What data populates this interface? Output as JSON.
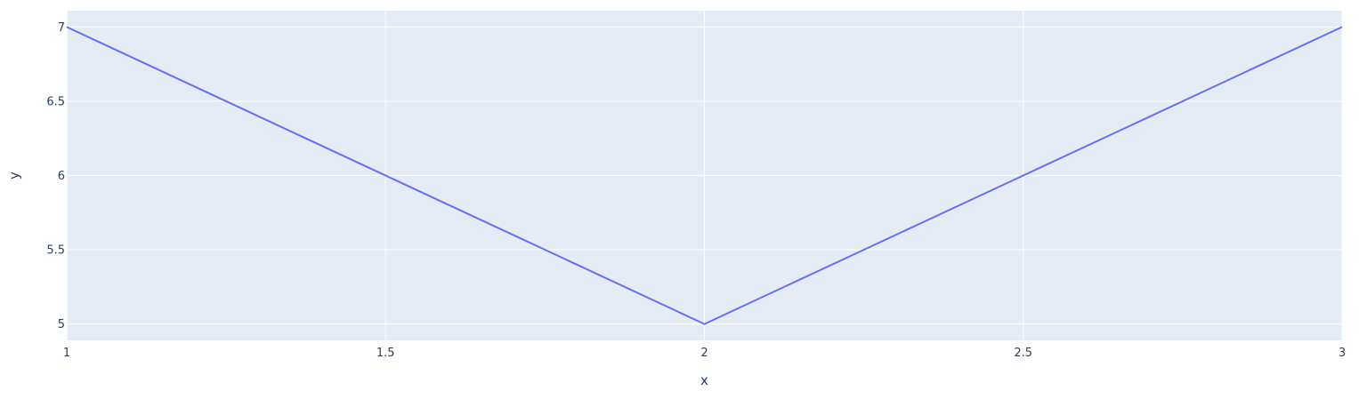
{
  "chart_data": {
    "type": "line",
    "title": "",
    "xlabel": "x",
    "ylabel": "y",
    "x": [
      1,
      2,
      3
    ],
    "series": [
      {
        "values": [
          7,
          5,
          7
        ]
      }
    ],
    "xlim": [
      1,
      3
    ],
    "ylim": [
      4.89,
      7.11
    ],
    "x_ticks": [
      1,
      1.5,
      2,
      2.5,
      3
    ],
    "x_tick_labels": [
      "1",
      "1.5",
      "2",
      "2.5",
      "3"
    ],
    "y_ticks": [
      5,
      5.5,
      6,
      6.5,
      7
    ],
    "y_tick_labels": [
      "5",
      "5.5",
      "6",
      "6.5",
      "7"
    ],
    "grid": true,
    "legend": "none",
    "colors": {
      "plot_background": "#e5ecf6",
      "grid": "#ffffff",
      "line": "#636efa",
      "text": "#2a3f5f"
    }
  }
}
